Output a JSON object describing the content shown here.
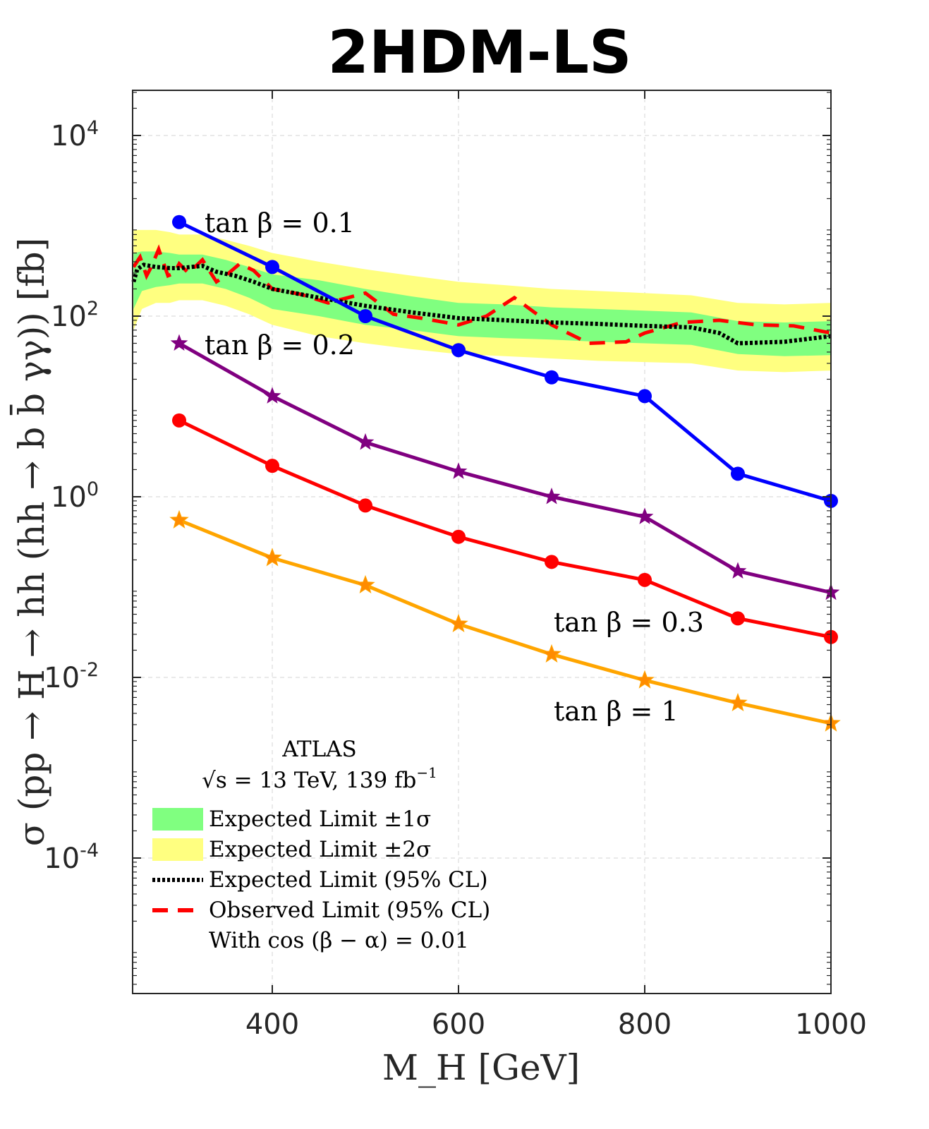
{
  "chart_data": {
    "type": "line",
    "title": "2HDM-LS",
    "xlabel": "M_H [GeV]",
    "ylabel": "σ (pp → H → hh (hh → b b̄ γγ)) [fb]",
    "xlim": [
      250,
      1000
    ],
    "ylim_log10": [
      -5.5,
      4.5
    ],
    "yscale": "log",
    "grid": true,
    "xticks": [
      {
        "value": 400,
        "label": "400"
      },
      {
        "value": 600,
        "label": "600"
      },
      {
        "value": 800,
        "label": "800"
      },
      {
        "value": 1000,
        "label": "1000"
      }
    ],
    "yticks": [
      {
        "log": 4,
        "base": "10",
        "exp": "4"
      },
      {
        "log": 2,
        "base": "10",
        "exp": "2"
      },
      {
        "log": 0,
        "base": "10",
        "exp": "0"
      },
      {
        "log": -2,
        "base": "10",
        "exp": "-2"
      },
      {
        "log": -4,
        "base": "10",
        "exp": "-4"
      }
    ],
    "band_x": [
      251,
      260,
      275,
      290,
      300,
      325,
      350,
      375,
      400,
      450,
      500,
      550,
      600,
      650,
      700,
      750,
      800,
      850,
      900,
      950,
      1000
    ],
    "band_2sigma": {
      "name": "Expected Limit ±2σ",
      "color": "#ffff80",
      "lower": [
        70,
        120,
        140,
        140,
        150,
        150,
        130,
        105,
        80,
        60,
        50,
        43,
        38,
        36,
        34,
        32,
        31,
        30,
        25,
        24,
        25
      ],
      "upper": [
        900,
        900,
        900,
        850,
        800,
        800,
        700,
        600,
        500,
        400,
        330,
        280,
        240,
        220,
        200,
        190,
        180,
        170,
        140,
        135,
        140
      ]
    },
    "band_1sigma": {
      "name": "Expected Limit ±1σ",
      "color": "#80ff80",
      "lower": [
        120,
        190,
        210,
        220,
        230,
        230,
        200,
        160,
        120,
        100,
        80,
        70,
        60,
        57,
        55,
        52,
        50,
        48,
        38,
        36,
        37
      ],
      "upper": [
        500,
        520,
        520,
        500,
        480,
        480,
        420,
        350,
        290,
        250,
        200,
        165,
        140,
        135,
        125,
        120,
        115,
        110,
        88,
        85,
        88
      ]
    },
    "expected_limit": {
      "name": "Expected Limit (95% CL)",
      "color": "#000000",
      "x": [
        251,
        255,
        262,
        275,
        290,
        300,
        325,
        340,
        360,
        380,
        400,
        450,
        500,
        550,
        600,
        650,
        700,
        750,
        800,
        850,
        880,
        900,
        950,
        1000
      ],
      "y": [
        240,
        330,
        370,
        350,
        340,
        340,
        360,
        310,
        280,
        240,
        200,
        160,
        130,
        110,
        95,
        90,
        85,
        82,
        78,
        75,
        65,
        50,
        52,
        60
      ]
    },
    "observed_limit": {
      "name": "Observed Limit (95% CL)",
      "color": "#ff0000",
      "x": [
        251,
        258,
        265,
        270,
        278,
        288,
        295,
        300,
        310,
        325,
        340,
        350,
        365,
        380,
        400,
        430,
        460,
        500,
        530,
        560,
        600,
        630,
        660,
        700,
        740,
        780,
        800,
        840,
        880,
        920,
        960,
        1000
      ],
      "y": [
        350,
        450,
        280,
        350,
        550,
        280,
        300,
        380,
        300,
        420,
        240,
        280,
        380,
        320,
        200,
        175,
        140,
        180,
        105,
        95,
        80,
        100,
        160,
        80,
        50,
        52,
        65,
        85,
        90,
        80,
        78,
        65
      ]
    },
    "series": [
      {
        "name": "tan β = 0.1",
        "label": "tan β = 0.1",
        "color": "#0000ff",
        "marker": "circle",
        "x": [
          300,
          400,
          500,
          600,
          700,
          800,
          900,
          1000
        ],
        "y": [
          1100,
          350,
          100,
          42,
          21,
          13,
          1.8,
          0.9
        ]
      },
      {
        "name": "tan β = 0.2",
        "label": "tan β = 0.2",
        "color": "#800080",
        "marker": "star",
        "x": [
          300,
          400,
          500,
          600,
          700,
          800,
          900,
          1000
        ],
        "y": [
          50,
          13,
          4,
          1.9,
          1.0,
          0.6,
          0.15,
          0.087
        ]
      },
      {
        "name": "tan β = 0.3",
        "label": "tan β = 0.3",
        "color": "#ff0000",
        "marker": "circle",
        "x": [
          300,
          400,
          500,
          600,
          700,
          800,
          900,
          1000
        ],
        "y": [
          7,
          2.2,
          0.8,
          0.36,
          0.19,
          0.12,
          0.045,
          0.028
        ]
      },
      {
        "name": "tan β = 1",
        "label": "tan β = 1",
        "color": "#ffa500",
        "marker": "star",
        "x": [
          300,
          400,
          500,
          600,
          700,
          800,
          900,
          1000
        ],
        "y": [
          0.55,
          0.21,
          0.105,
          0.039,
          0.018,
          0.0093,
          0.0052,
          0.0031
        ]
      }
    ],
    "legend": {
      "position": "bottom-left",
      "header1": "ATLAS",
      "header2": "√s = 13 TeV, 139 fb",
      "header2_sup": "−1",
      "entries": [
        {
          "label": "Expected Limit ±1σ",
          "style": "patch-green"
        },
        {
          "label": "Expected Limit ±2σ",
          "style": "patch-yellow"
        },
        {
          "label": "Expected Limit (95% CL)",
          "style": "dotted-black"
        },
        {
          "label": "Observed Limit (95% CL)",
          "style": "dashed-red"
        }
      ],
      "footer": "With cos (β − α) = 0.01"
    }
  }
}
